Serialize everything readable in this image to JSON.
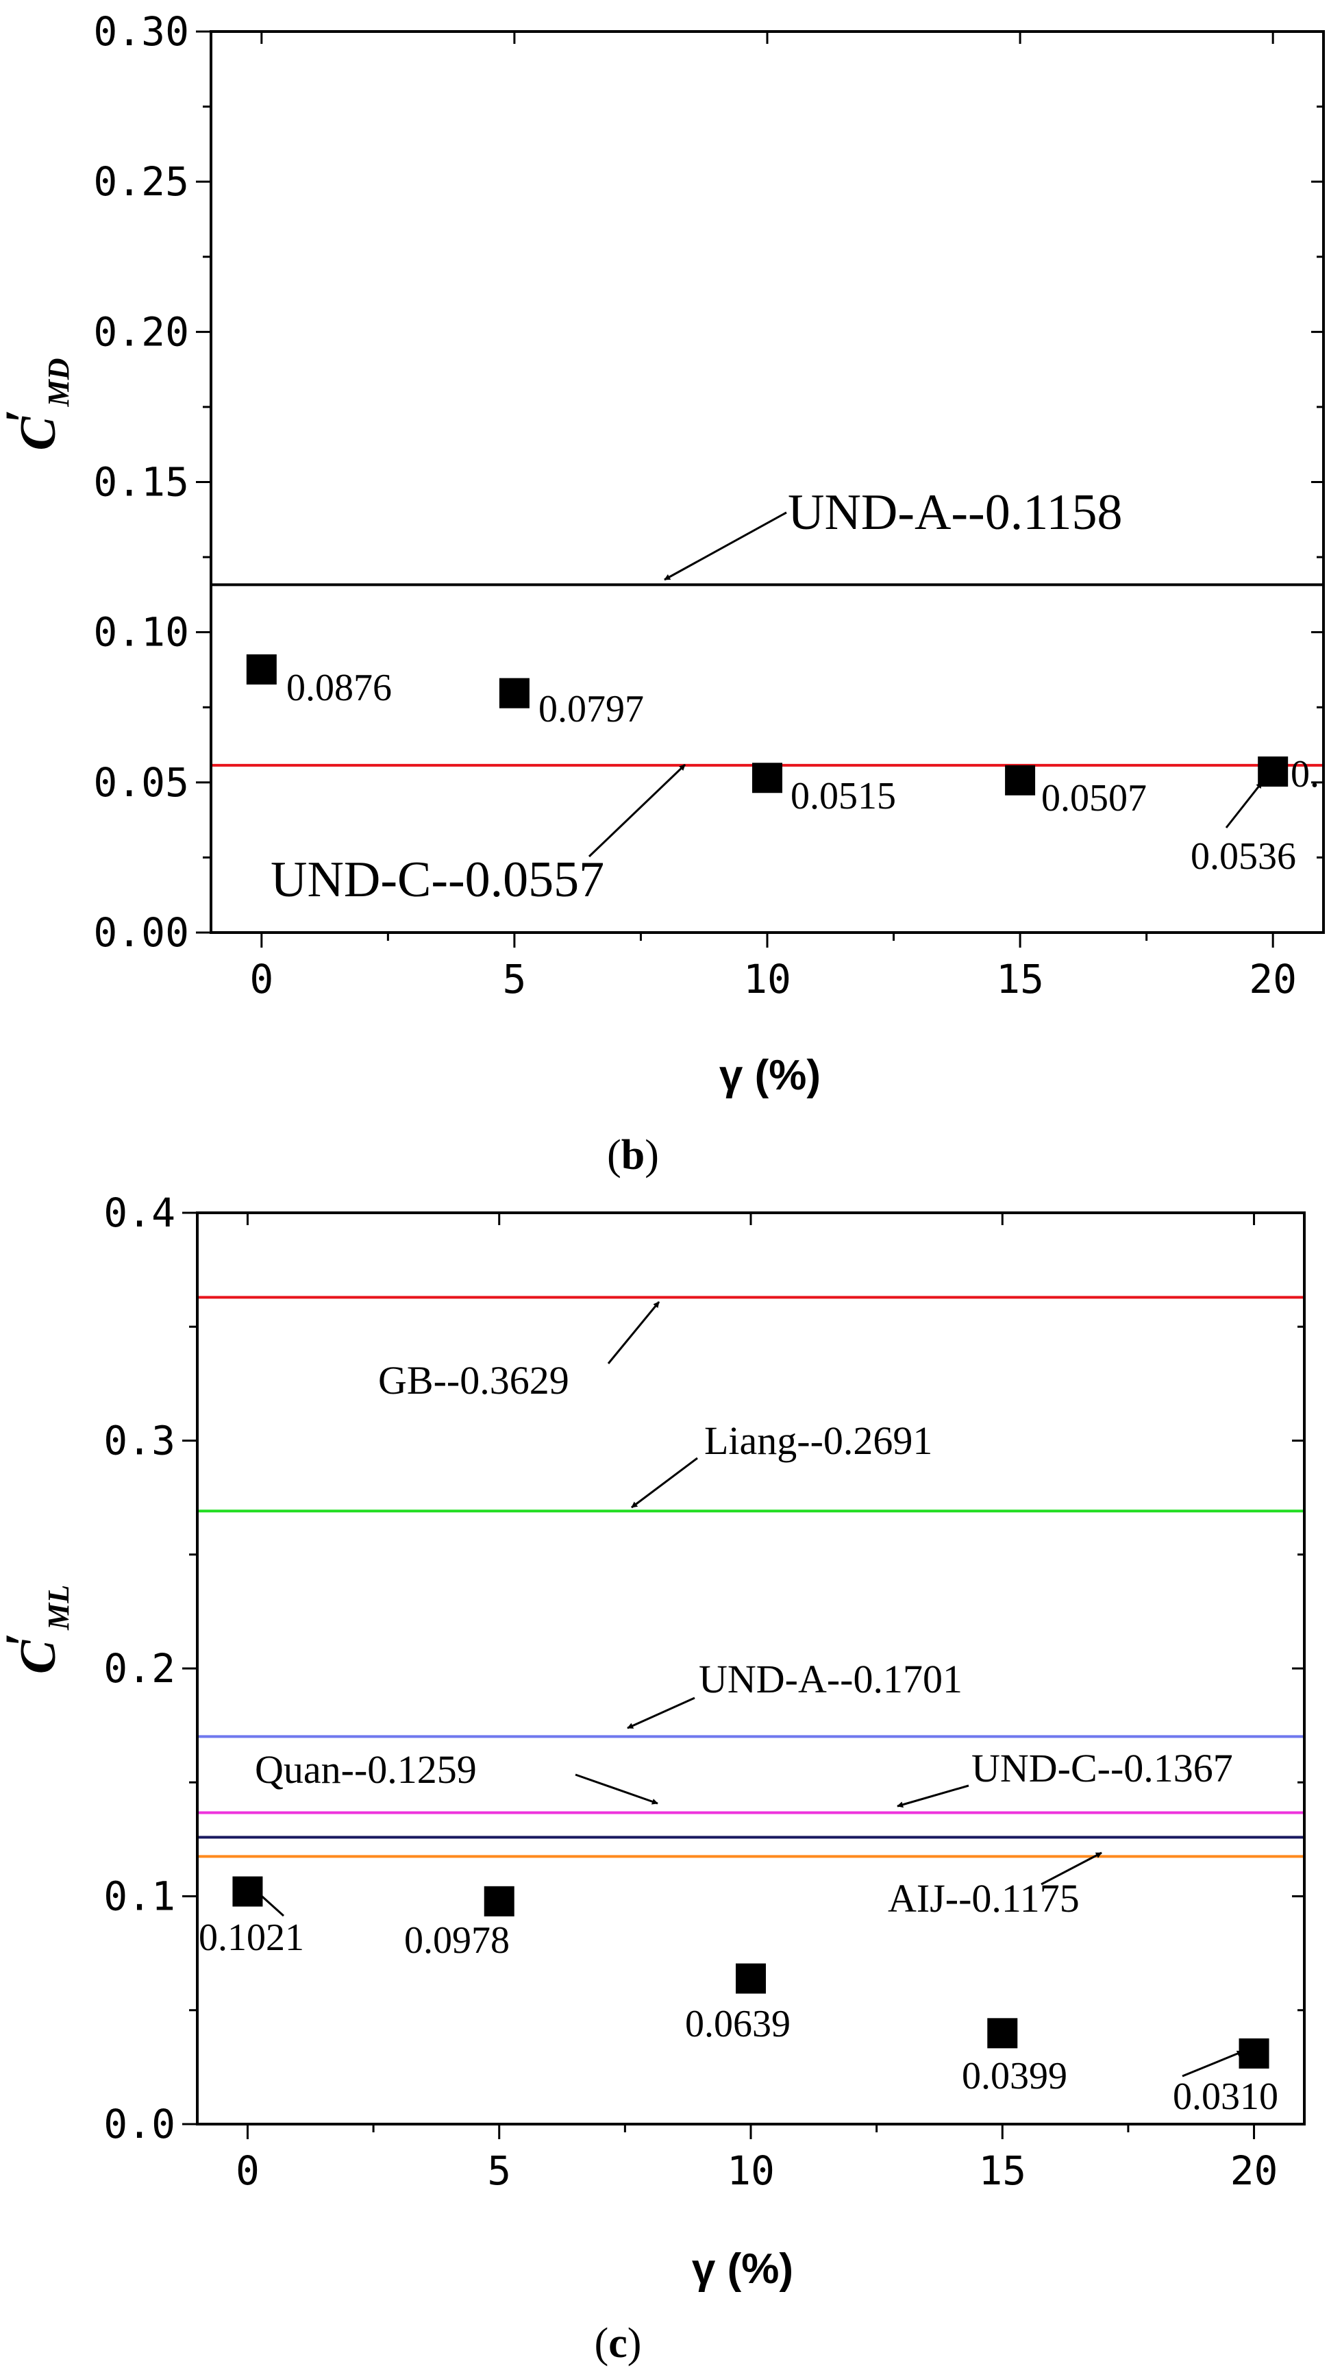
{
  "chart_data": [
    {
      "type": "scatter",
      "panel": "(b)",
      "caption": {
        "open": "(",
        "letter": "b",
        "close": ")"
      },
      "ylabel_main": "C",
      "ylabel_prime": "′",
      "ylabel_sub": "MD",
      "xlabel": "γ (%)",
      "xlim": [
        -1,
        21
      ],
      "ylim": [
        0,
        0.3
      ],
      "xticks": [
        0,
        5,
        10,
        15,
        20
      ],
      "xtick_labels": [
        "0",
        "5",
        "10",
        "15",
        "20"
      ],
      "yticks": [
        0,
        0.05,
        0.1,
        0.15,
        0.2,
        0.25,
        0.3
      ],
      "ytick_labels": [
        "0.00",
        "0.05",
        "0.10",
        "0.15",
        "0.20",
        "0.25",
        "0.30"
      ],
      "points": [
        {
          "x": 0,
          "y": 0.0876,
          "label": "0.0876"
        },
        {
          "x": 5,
          "y": 0.0797,
          "label": "0.0797"
        },
        {
          "x": 10,
          "y": 0.0515,
          "label": "0.0515"
        },
        {
          "x": 15,
          "y": 0.0507,
          "label": "0.0507"
        },
        {
          "x": 20,
          "y": 0.0536,
          "label": "0.0536"
        }
      ],
      "clipped_label": "0.",
      "ref_lines": [
        {
          "name": "UND-A",
          "value": 0.1158,
          "label": "UND-A--0.1158",
          "color": "#000000"
        },
        {
          "name": "UND-C",
          "value": 0.0557,
          "label": "UND-C--0.0557",
          "color": "#e8141c"
        }
      ]
    },
    {
      "type": "scatter",
      "panel": "(c)",
      "caption": {
        "open": "(",
        "letter": "c",
        "close": ")"
      },
      "ylabel_main": "C",
      "ylabel_prime": "′",
      "ylabel_sub": "ML",
      "xlabel": "γ (%)",
      "xlim": [
        -1,
        21
      ],
      "ylim": [
        0,
        0.4
      ],
      "xticks": [
        0,
        5,
        10,
        15,
        20
      ],
      "xtick_labels": [
        "0",
        "5",
        "10",
        "15",
        "20"
      ],
      "yticks": [
        0,
        0.1,
        0.2,
        0.3,
        0.4
      ],
      "ytick_labels": [
        "0.0",
        "0.1",
        "0.2",
        "0.3",
        "0.4"
      ],
      "points": [
        {
          "x": 0,
          "y": 0.1021,
          "label": "0.1021"
        },
        {
          "x": 5,
          "y": 0.0978,
          "label": "0.0978"
        },
        {
          "x": 10,
          "y": 0.0639,
          "label": "0.0639"
        },
        {
          "x": 15,
          "y": 0.0399,
          "label": "0.0399"
        },
        {
          "x": 20,
          "y": 0.031,
          "label": "0.0310"
        }
      ],
      "ref_lines": [
        {
          "name": "GB",
          "value": 0.3629,
          "label": "GB--0.3629",
          "color": "#e8141c"
        },
        {
          "name": "Liang",
          "value": 0.2691,
          "label": "Liang--0.2691",
          "color": "#22dd22"
        },
        {
          "name": "UND-A",
          "value": 0.1701,
          "label": "UND-A--0.1701",
          "color": "#6f78ee"
        },
        {
          "name": "UND-C",
          "value": 0.1367,
          "label": "UND-C--0.1367",
          "color": "#ee33dd"
        },
        {
          "name": "Quan",
          "value": 0.1259,
          "label": "Quan--0.1259",
          "color": "#1a1a60"
        },
        {
          "name": "AIJ",
          "value": 0.1175,
          "label": "AIJ--0.1175",
          "color": "#ff8a1e"
        }
      ]
    }
  ]
}
